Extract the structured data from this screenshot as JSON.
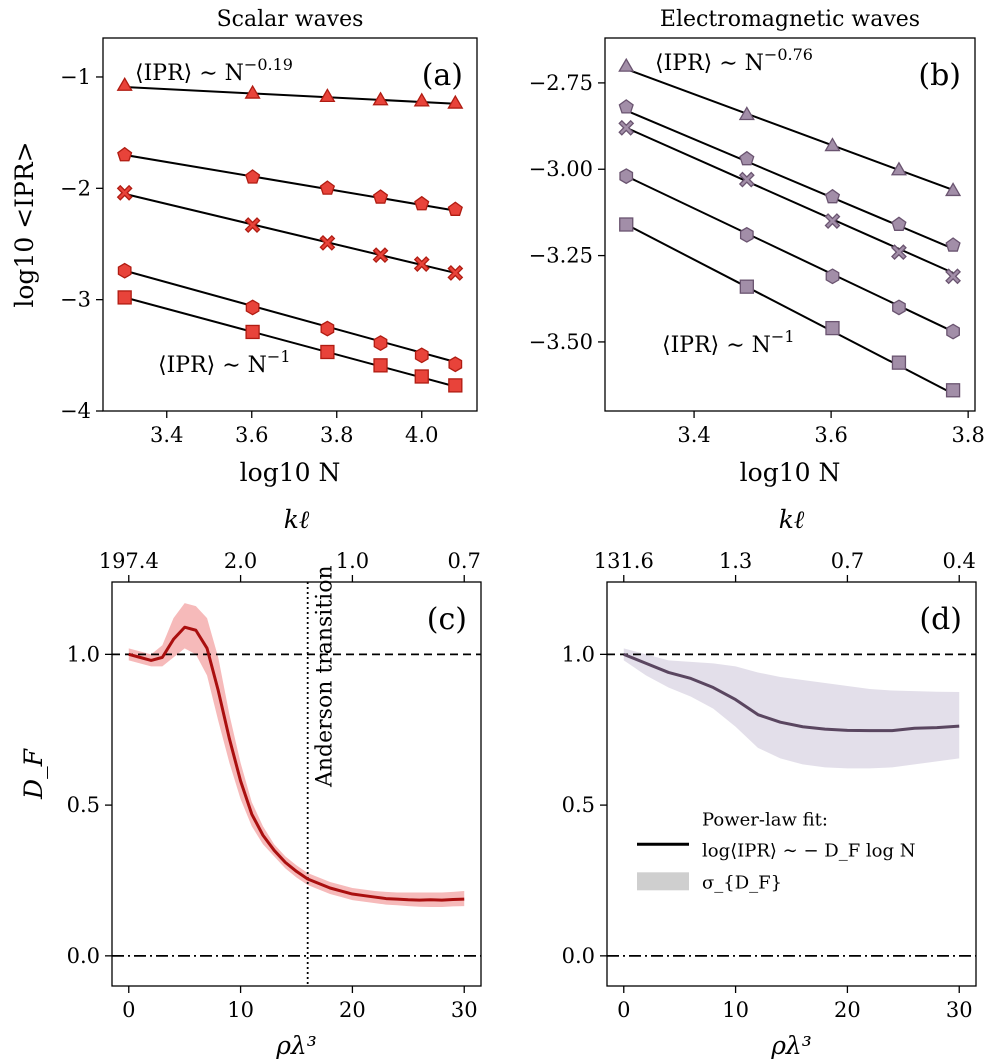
{
  "chart_data": [
    {
      "panel": "(a)",
      "type": "scatter",
      "title": "Scalar waves",
      "xlabel": "log10 N",
      "ylabel": "log10 <IPR>",
      "xlim": [
        3.25,
        4.13
      ],
      "ylim": [
        -4.0,
        -0.65
      ],
      "xticks": [
        3.4,
        3.6,
        3.8,
        4.0
      ],
      "xtick_labels": [
        "3.4",
        "3.6",
        "3.8",
        "4.0"
      ],
      "yticks": [
        -4,
        -3,
        -2,
        -1
      ],
      "ytick_labels": [
        "−4",
        "−3",
        "−2",
        "−1"
      ],
      "annotations": [
        "⟨IPR⟩ ∼ N^−0.19",
        "⟨IPR⟩ ∼ N^−1"
      ],
      "x": [
        3.301,
        3.602,
        3.778,
        3.903,
        4.0,
        4.079
      ],
      "series": [
        {
          "name": "triangle",
          "marker": "triangle",
          "values": [
            -1.07,
            -1.14,
            -1.17,
            -1.2,
            -1.21,
            -1.23
          ]
        },
        {
          "name": "pentagon",
          "marker": "pentagon",
          "values": [
            -1.7,
            -1.9,
            -2.0,
            -2.08,
            -2.14,
            -2.19
          ]
        },
        {
          "name": "cross",
          "marker": "cross",
          "values": [
            -2.04,
            -2.33,
            -2.49,
            -2.6,
            -2.68,
            -2.76
          ]
        },
        {
          "name": "hexagon",
          "marker": "hexagon",
          "values": [
            -2.74,
            -3.07,
            -3.26,
            -3.39,
            -3.5,
            -3.58
          ]
        },
        {
          "name": "square",
          "marker": "square",
          "values": [
            -2.98,
            -3.29,
            -3.47,
            -3.59,
            -3.69,
            -3.77
          ]
        }
      ],
      "fit_lines": [
        {
          "name": "triangle-fit",
          "x": [
            3.301,
            4.079
          ],
          "y": [
            -1.09,
            -1.24
          ]
        },
        {
          "name": "pentagon-fit",
          "x": [
            3.301,
            4.079
          ],
          "y": [
            -1.7,
            -2.2
          ]
        },
        {
          "name": "cross-fit",
          "x": [
            3.301,
            4.079
          ],
          "y": [
            -2.05,
            -2.76
          ]
        },
        {
          "name": "hexagon-fit",
          "x": [
            3.301,
            4.079
          ],
          "y": [
            -2.74,
            -3.56
          ]
        },
        {
          "name": "square-fit",
          "x": [
            3.301,
            4.079
          ],
          "y": [
            -2.98,
            -3.78
          ]
        }
      ],
      "color": "#e8433a",
      "edge_color": "#b01c12"
    },
    {
      "panel": "(b)",
      "type": "scatter",
      "title": "Electromagnetic waves",
      "xlabel": "log10 N",
      "ylabel": "",
      "xlim": [
        3.27,
        3.81
      ],
      "ylim": [
        -3.7,
        -2.62
      ],
      "xticks": [
        3.4,
        3.6,
        3.8
      ],
      "xtick_labels": [
        "3.4",
        "3.6",
        "3.8"
      ],
      "yticks": [
        -3.5,
        -3.25,
        -3.0,
        -2.75
      ],
      "ytick_labels": [
        "−3.50",
        "−3.25",
        "−3.00",
        "−2.75"
      ],
      "annotations": [
        "⟨IPR⟩ ∼ N^−0.76",
        "⟨IPR⟩ ∼ N^−1"
      ],
      "x": [
        3.301,
        3.477,
        3.602,
        3.699,
        3.778
      ],
      "series": [
        {
          "name": "triangle",
          "marker": "triangle",
          "values": [
            -2.7,
            -2.84,
            -2.93,
            -3.0,
            -3.06
          ]
        },
        {
          "name": "pentagon",
          "marker": "pentagon",
          "values": [
            -2.82,
            -2.97,
            -3.08,
            -3.16,
            -3.22
          ]
        },
        {
          "name": "cross",
          "marker": "cross",
          "values": [
            -2.88,
            -3.03,
            -3.15,
            -3.24,
            -3.31
          ]
        },
        {
          "name": "hexagon",
          "marker": "hexagon",
          "values": [
            -3.02,
            -3.19,
            -3.31,
            -3.4,
            -3.47
          ]
        },
        {
          "name": "square",
          "marker": "square",
          "values": [
            -3.16,
            -3.34,
            -3.46,
            -3.56,
            -3.64
          ]
        }
      ],
      "fit_lines": [
        {
          "name": "triangle-fit",
          "x": [
            3.301,
            3.778
          ],
          "y": [
            -2.71,
            -3.06
          ]
        },
        {
          "name": "pentagon-fit",
          "x": [
            3.301,
            3.778
          ],
          "y": [
            -2.83,
            -3.23
          ]
        },
        {
          "name": "cross-fit",
          "x": [
            3.301,
            3.778
          ],
          "y": [
            -2.88,
            -3.3
          ]
        },
        {
          "name": "hexagon-fit",
          "x": [
            3.301,
            3.778
          ],
          "y": [
            -3.02,
            -3.47
          ]
        },
        {
          "name": "square-fit",
          "x": [
            3.301,
            3.778
          ],
          "y": [
            -3.16,
            -3.65
          ]
        }
      ],
      "color": "#a28ea8",
      "edge_color": "#6a5470"
    },
    {
      "panel": "(c)",
      "type": "line",
      "title": "",
      "xlabel": "ρλ³",
      "ylabel": "D_F",
      "top_xlabel": "kℓ",
      "xlim": [
        -1.5,
        31.5
      ],
      "ylim": [
        -0.1,
        1.24
      ],
      "xticks": [
        0,
        10,
        20,
        30
      ],
      "xtick_labels": [
        "0",
        "10",
        "20",
        "30"
      ],
      "yticks": [
        0.0,
        0.5,
        1.0
      ],
      "ytick_labels": [
        "0.0",
        "0.5",
        "1.0"
      ],
      "top_ticks_at_x": [
        0,
        10,
        20,
        30
      ],
      "top_tick_labels": [
        "197.4",
        "2.0",
        "1.0",
        "0.7"
      ],
      "reference_lines": [
        {
          "y": 1.0,
          "style": "dashed"
        },
        {
          "y": 0.0,
          "style": "dash-dot"
        }
      ],
      "vertical_line": {
        "x": 16,
        "label": "Anderson transition"
      },
      "x": [
        0,
        1,
        2,
        3,
        4,
        5,
        6,
        7,
        8,
        9,
        10,
        11,
        12,
        13,
        14,
        15,
        16,
        17,
        18,
        19,
        20,
        21,
        22,
        23,
        24,
        25,
        26,
        27,
        28,
        29,
        30
      ],
      "series": [
        {
          "name": "D_F",
          "values": [
            1.0,
            0.99,
            0.98,
            0.99,
            1.05,
            1.09,
            1.08,
            1.02,
            0.88,
            0.72,
            0.58,
            0.47,
            0.4,
            0.35,
            0.31,
            0.28,
            0.255,
            0.24,
            0.225,
            0.215,
            0.205,
            0.2,
            0.195,
            0.19,
            0.188,
            0.186,
            0.185,
            0.186,
            0.185,
            0.187,
            0.188
          ],
          "band_upper": [
            1.02,
            1.01,
            1.0,
            1.03,
            1.12,
            1.17,
            1.16,
            1.12,
            0.99,
            0.8,
            0.64,
            0.51,
            0.43,
            0.37,
            0.33,
            0.3,
            0.275,
            0.26,
            0.245,
            0.235,
            0.225,
            0.22,
            0.215,
            0.212,
            0.21,
            0.21,
            0.21,
            0.21,
            0.21,
            0.212,
            0.215
          ],
          "band_lower": [
            0.98,
            0.97,
            0.96,
            0.96,
            0.99,
            1.02,
            1.0,
            0.93,
            0.78,
            0.64,
            0.52,
            0.43,
            0.37,
            0.33,
            0.29,
            0.26,
            0.235,
            0.22,
            0.205,
            0.195,
            0.185,
            0.18,
            0.175,
            0.17,
            0.168,
            0.165,
            0.163,
            0.162,
            0.162,
            0.164,
            0.165
          ]
        }
      ],
      "color": "#aa0f0f",
      "band_color": "#f5b3b3"
    },
    {
      "panel": "(d)",
      "type": "line",
      "title": "",
      "xlabel": "ρλ³",
      "ylabel": "",
      "top_xlabel": "kℓ",
      "xlim": [
        -1.5,
        31.5
      ],
      "ylim": [
        -0.1,
        1.24
      ],
      "xticks": [
        0,
        10,
        20,
        30
      ],
      "xtick_labels": [
        "0",
        "10",
        "20",
        "30"
      ],
      "yticks": [
        0.0,
        0.5,
        1.0
      ],
      "ytick_labels": [
        "0.0",
        "0.5",
        "1.0"
      ],
      "top_ticks_at_x": [
        0,
        10,
        20,
        30
      ],
      "top_tick_labels": [
        "131.6",
        "1.3",
        "0.7",
        "0.4"
      ],
      "reference_lines": [
        {
          "y": 1.0,
          "style": "dashed"
        },
        {
          "y": 0.0,
          "style": "dash-dot"
        }
      ],
      "legend": {
        "position": "center-right",
        "entries": [
          {
            "label": "Power-law fit:",
            "sublabel": "log⟨IPR⟩ ∼ − D_F log N",
            "kind": "line"
          },
          {
            "label": "σ_{D_F}",
            "kind": "band"
          }
        ]
      },
      "x": [
        0,
        2,
        4,
        6,
        8,
        10,
        12,
        14,
        16,
        18,
        20,
        22,
        24,
        26,
        28,
        30
      ],
      "series": [
        {
          "name": "D_F",
          "values": [
            1.0,
            0.97,
            0.94,
            0.92,
            0.89,
            0.85,
            0.8,
            0.775,
            0.76,
            0.752,
            0.748,
            0.747,
            0.747,
            0.755,
            0.757,
            0.762
          ],
          "band_upper": [
            1.02,
            1.0,
            0.98,
            0.975,
            0.97,
            0.96,
            0.94,
            0.925,
            0.915,
            0.905,
            0.895,
            0.885,
            0.88,
            0.878,
            0.876,
            0.875
          ],
          "band_lower": [
            0.98,
            0.93,
            0.89,
            0.86,
            0.82,
            0.76,
            0.69,
            0.655,
            0.635,
            0.625,
            0.622,
            0.622,
            0.625,
            0.635,
            0.645,
            0.655
          ]
        }
      ],
      "color": "#5a4660",
      "band_color": "#e0dbe8"
    }
  ]
}
